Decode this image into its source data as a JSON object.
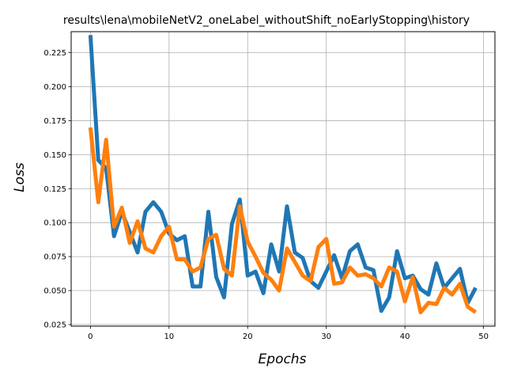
{
  "chart_data": {
    "type": "line",
    "title": "results\\lena\\mobileNetV2_oneLabel_withoutShift_noEarlyStopping\\history",
    "xlabel": "Epochs",
    "ylabel": "Loss",
    "xlim": [
      -2.45,
      51.45
    ],
    "ylim": [
      0.0238,
      0.2405
    ],
    "xticks": [
      0,
      10,
      20,
      30,
      40,
      50
    ],
    "yticks": [
      0.025,
      0.05,
      0.075,
      0.1,
      0.125,
      0.15,
      0.175,
      0.2,
      0.225
    ],
    "xtick_labels": [
      "0",
      "10",
      "20",
      "30",
      "40",
      "50"
    ],
    "ytick_labels": [
      "0.025",
      "0.050",
      "0.075",
      "0.100",
      "0.125",
      "0.150",
      "0.175",
      "0.200",
      "0.225"
    ],
    "grid": true,
    "legend": false,
    "x": [
      0,
      1,
      2,
      3,
      4,
      5,
      6,
      7,
      8,
      9,
      10,
      11,
      12,
      13,
      14,
      15,
      16,
      17,
      18,
      19,
      20,
      21,
      22,
      23,
      24,
      25,
      26,
      27,
      28,
      29,
      30,
      31,
      32,
      33,
      34,
      35,
      36,
      37,
      38,
      39,
      40,
      41,
      42,
      43,
      44,
      45,
      46,
      47,
      48,
      49
    ],
    "series": [
      {
        "color": "#1f77b4",
        "values": [
          0.238,
          0.146,
          0.14,
          0.09,
          0.108,
          0.093,
          0.078,
          0.108,
          0.115,
          0.108,
          0.092,
          0.087,
          0.09,
          0.053,
          0.053,
          0.108,
          0.06,
          0.045,
          0.099,
          0.117,
          0.061,
          0.064,
          0.048,
          0.084,
          0.064,
          0.112,
          0.078,
          0.074,
          0.057,
          0.052,
          0.064,
          0.076,
          0.059,
          0.079,
          0.084,
          0.067,
          0.065,
          0.035,
          0.045,
          0.079,
          0.059,
          0.061,
          0.051,
          0.047,
          0.07,
          0.052,
          0.059,
          0.066,
          0.041,
          0.052
        ]
      },
      {
        "color": "#ff7f0e",
        "values": [
          0.17,
          0.115,
          0.161,
          0.097,
          0.111,
          0.085,
          0.101,
          0.081,
          0.078,
          0.09,
          0.097,
          0.073,
          0.073,
          0.064,
          0.067,
          0.088,
          0.091,
          0.066,
          0.061,
          0.112,
          0.086,
          0.075,
          0.063,
          0.058,
          0.05,
          0.081,
          0.071,
          0.061,
          0.057,
          0.082,
          0.088,
          0.055,
          0.056,
          0.067,
          0.061,
          0.062,
          0.059,
          0.053,
          0.067,
          0.064,
          0.042,
          0.06,
          0.034,
          0.041,
          0.04,
          0.052,
          0.047,
          0.055,
          0.038,
          0.034
        ]
      }
    ]
  }
}
